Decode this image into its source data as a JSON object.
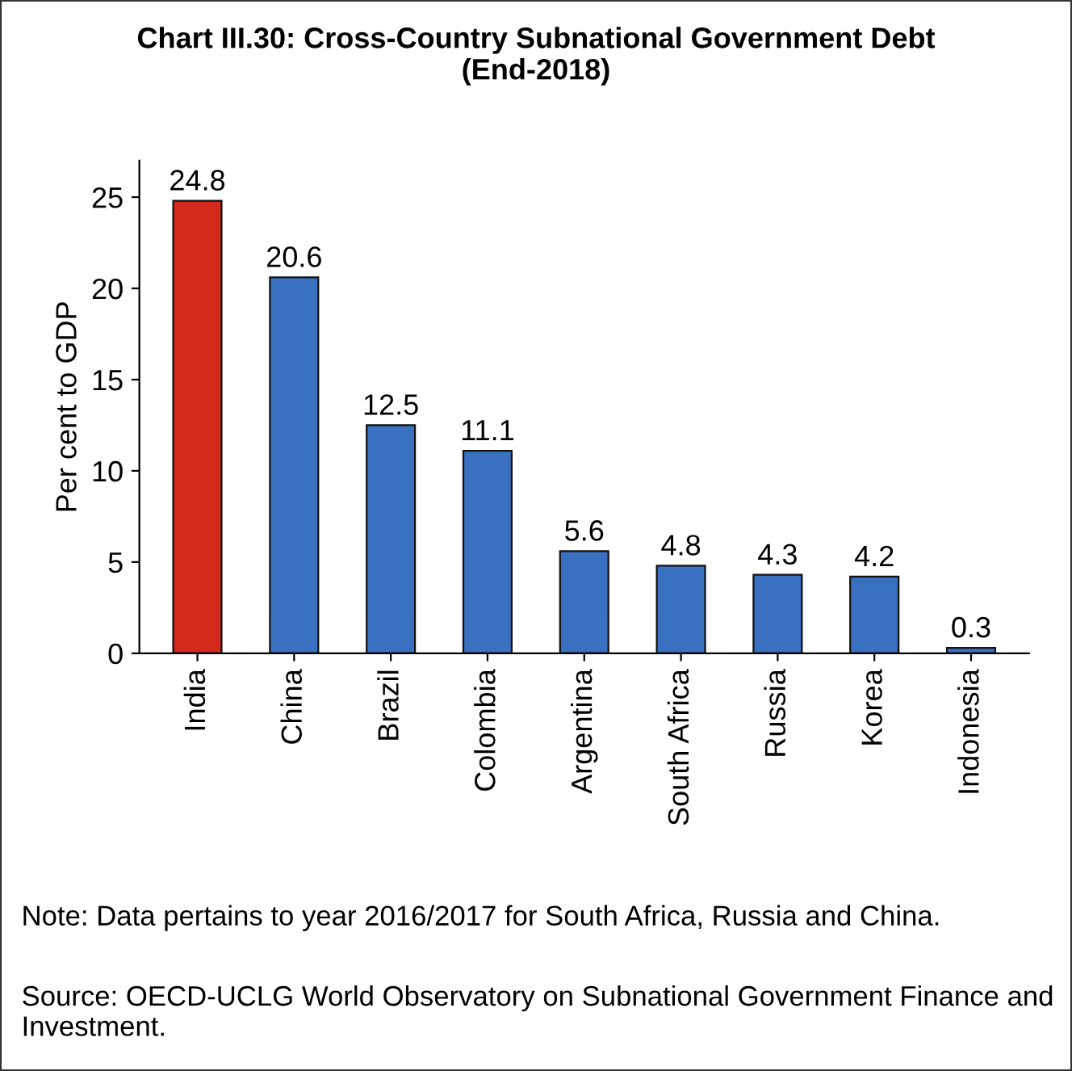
{
  "chart_data": {
    "type": "bar",
    "title": "Chart III.30: Cross-Country Subnational Government Debt\n(End-2018)",
    "ylabel": "Per cent to GDP",
    "categories": [
      "India",
      "China",
      "Brazil",
      "Colombia",
      "Argentina",
      "South Africa",
      "Russia",
      "Korea",
      "Indonesia"
    ],
    "values": [
      24.8,
      20.6,
      12.5,
      11.1,
      5.6,
      4.8,
      4.3,
      4.2,
      0.3
    ],
    "colors": [
      "#d42a1e",
      "#3a70c0",
      "#3a70c0",
      "#3a70c0",
      "#3a70c0",
      "#3a70c0",
      "#3a70c0",
      "#3a70c0",
      "#3a70c0"
    ],
    "ylim": [
      0,
      27
    ],
    "yticks": [
      0,
      5,
      10,
      15,
      20,
      25
    ],
    "data_labels": true,
    "grid": false,
    "legend": false,
    "annotations": [
      "Note: Data pertains to year 2016/2017 for South Africa, Russia and China.",
      "Source: OECD-UCLG World Observatory on Subnational Government Finance and Investment."
    ]
  }
}
